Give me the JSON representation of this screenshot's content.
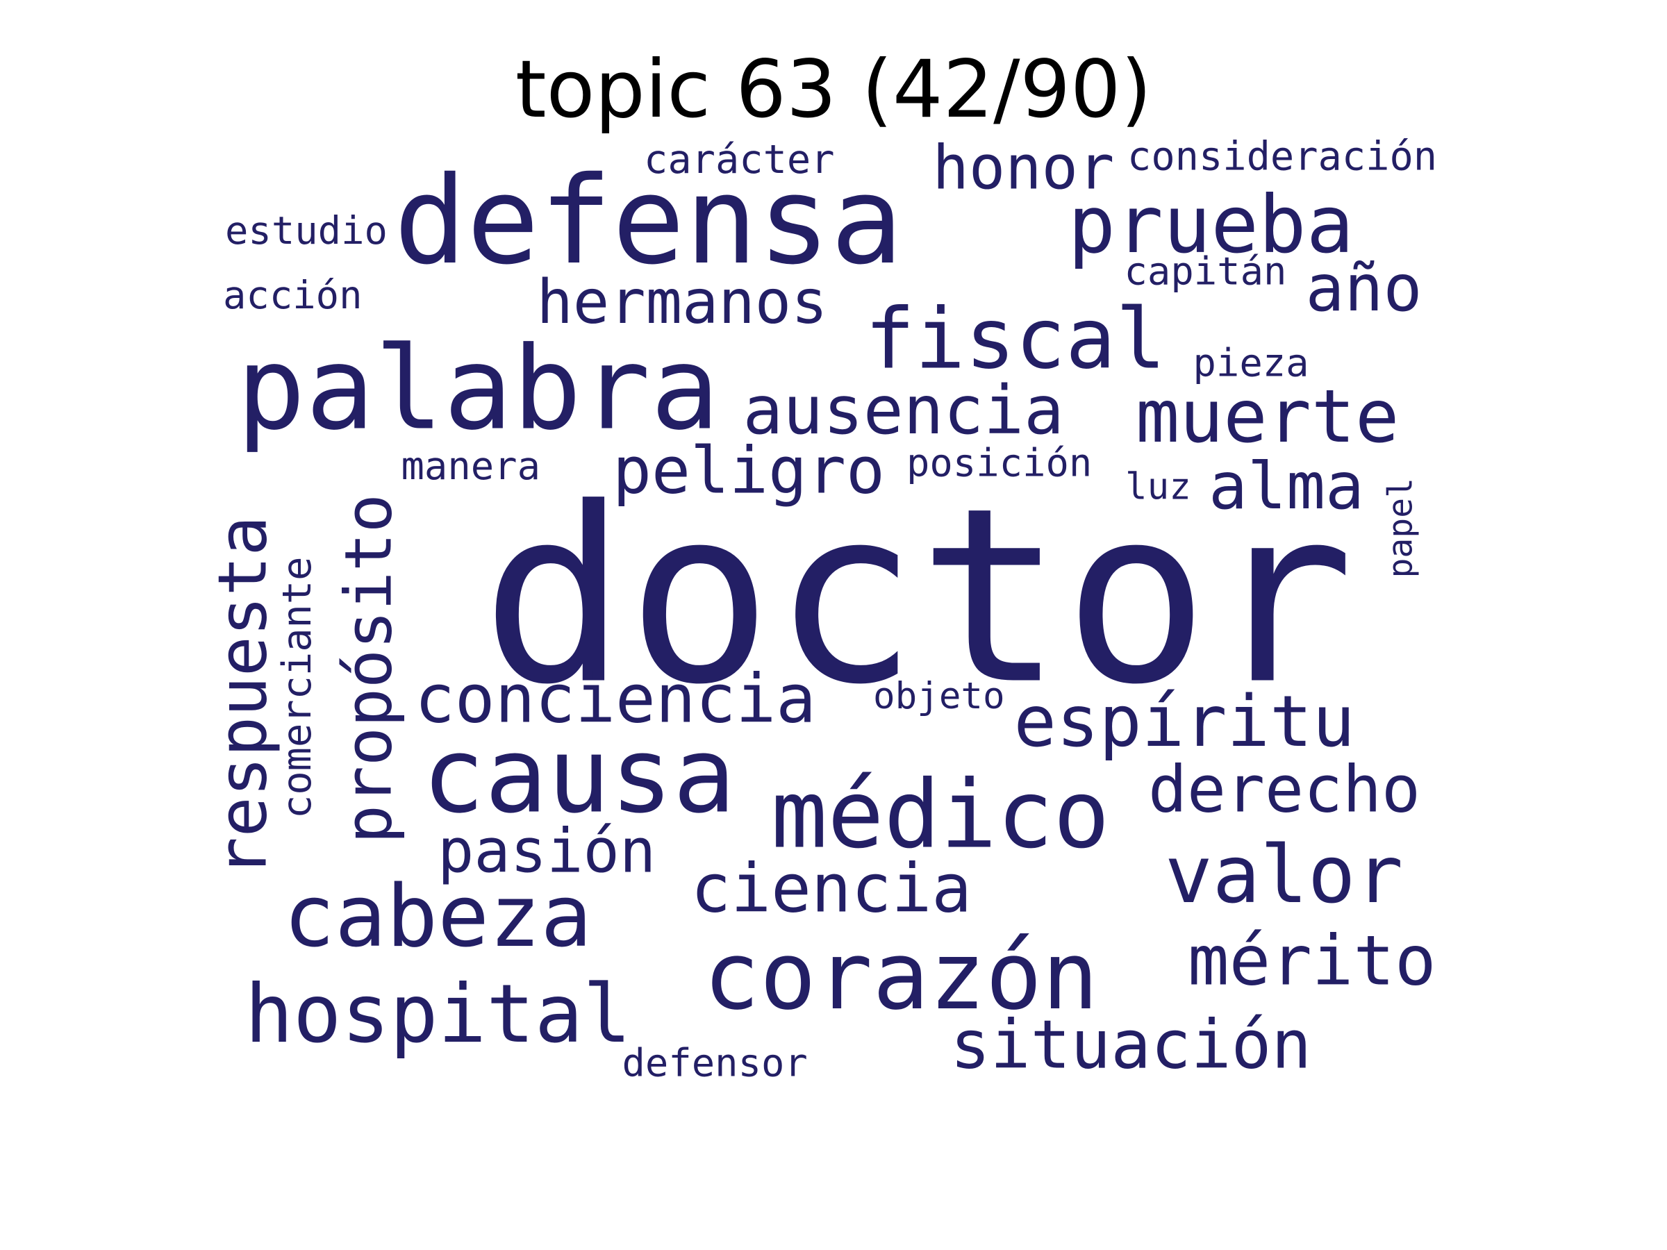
{
  "title": "topic 63 (42/90)",
  "word_color": "#231F65",
  "words": [
    {
      "text": "doctor",
      "weight": 1.0,
      "orientation": "horizontal"
    },
    {
      "text": "palabra",
      "weight": 0.5,
      "orientation": "horizontal"
    },
    {
      "text": "defensa",
      "weight": 0.5,
      "orientation": "horizontal"
    },
    {
      "text": "causa",
      "weight": 0.44,
      "orientation": "horizontal"
    },
    {
      "text": "corazón",
      "weight": 0.42,
      "orientation": "horizontal"
    },
    {
      "text": "médico",
      "weight": 0.42,
      "orientation": "horizontal"
    },
    {
      "text": "cabeza",
      "weight": 0.37,
      "orientation": "horizontal"
    },
    {
      "text": "prueba",
      "weight": 0.37,
      "orientation": "horizontal"
    },
    {
      "text": "fiscal",
      "weight": 0.36,
      "orientation": "horizontal"
    },
    {
      "text": "hospital",
      "weight": 0.36,
      "orientation": "horizontal"
    },
    {
      "text": "propósito",
      "weight": 0.36,
      "orientation": "vertical"
    },
    {
      "text": "valor",
      "weight": 0.36,
      "orientation": "horizontal"
    },
    {
      "text": "respuesta",
      "weight": 0.33,
      "orientation": "vertical"
    },
    {
      "text": "espíritu",
      "weight": 0.33,
      "orientation": "horizontal"
    },
    {
      "text": "muerte",
      "weight": 0.33,
      "orientation": "horizontal"
    },
    {
      "text": "mérito",
      "weight": 0.31,
      "orientation": "horizontal"
    },
    {
      "text": "conciencia",
      "weight": 0.31,
      "orientation": "horizontal"
    },
    {
      "text": "ausencia",
      "weight": 0.31,
      "orientation": "horizontal"
    },
    {
      "text": "ciencia",
      "weight": 0.31,
      "orientation": "horizontal"
    },
    {
      "text": "situación",
      "weight": 0.3,
      "orientation": "horizontal"
    },
    {
      "text": "derecho",
      "weight": 0.3,
      "orientation": "horizontal"
    },
    {
      "text": "año",
      "weight": 0.29,
      "orientation": "horizontal"
    },
    {
      "text": "peligro",
      "weight": 0.29,
      "orientation": "horizontal"
    },
    {
      "text": "alma",
      "weight": 0.29,
      "orientation": "horizontal"
    },
    {
      "text": "hermanos",
      "weight": 0.27,
      "orientation": "horizontal"
    },
    {
      "text": "pasión",
      "weight": 0.27,
      "orientation": "horizontal"
    },
    {
      "text": "honor",
      "weight": 0.27,
      "orientation": "horizontal"
    },
    {
      "text": "comerciante",
      "weight": 0.17,
      "orientation": "vertical"
    },
    {
      "text": "consideración",
      "weight": 0.17,
      "orientation": "horizontal"
    },
    {
      "text": "carácter",
      "weight": 0.17,
      "orientation": "horizontal"
    },
    {
      "text": "capitán",
      "weight": 0.16,
      "orientation": "horizontal"
    },
    {
      "text": "manera",
      "weight": 0.16,
      "orientation": "horizontal"
    },
    {
      "text": "posición",
      "weight": 0.16,
      "orientation": "horizontal"
    },
    {
      "text": "defensor",
      "weight": 0.16,
      "orientation": "horizontal"
    },
    {
      "text": "estudio",
      "weight": 0.16,
      "orientation": "horizontal"
    },
    {
      "text": "acción",
      "weight": 0.16,
      "orientation": "horizontal"
    },
    {
      "text": "pieza",
      "weight": 0.16,
      "orientation": "horizontal"
    },
    {
      "text": "objeto",
      "weight": 0.15,
      "orientation": "horizontal"
    },
    {
      "text": "luz",
      "weight": 0.15,
      "orientation": "horizontal"
    },
    {
      "text": "papel",
      "weight": 0.13,
      "orientation": "vertical"
    }
  ]
}
